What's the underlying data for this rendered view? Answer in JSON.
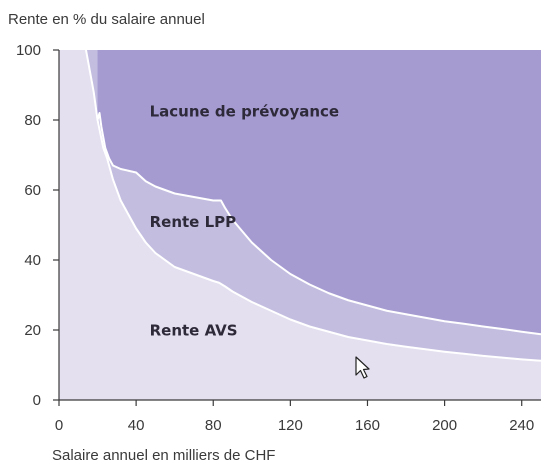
{
  "chart_data": {
    "type": "area",
    "ylabel": "Rente en % du salaire annuel",
    "xlabel": "Salaire annuel en milliers de CHF",
    "xlim": [
      0,
      250
    ],
    "ylim": [
      0,
      100
    ],
    "xticks": [
      0,
      40,
      80,
      120,
      160,
      200,
      240
    ],
    "yticks": [
      0,
      20,
      40,
      60,
      80,
      100
    ],
    "grid": false,
    "colors": {
      "avs": "#e4e0f0",
      "lpp": "#c3bde0",
      "lacune": "#a59bd1",
      "boundary": "#ffffff",
      "axis": "#3a3a3a"
    },
    "series": [
      {
        "name": "Rente AVS",
        "x": [
          14,
          18,
          20,
          23,
          25,
          28,
          32,
          36,
          40,
          45,
          50,
          55,
          60,
          65,
          70,
          75,
          80,
          83,
          86,
          90,
          100,
          110,
          120,
          130,
          140,
          150,
          160,
          170,
          180,
          190,
          200,
          210,
          220,
          230,
          240,
          250
        ],
        "y": [
          100,
          88,
          80,
          72,
          69,
          63,
          57,
          53,
          49,
          45,
          42,
          40,
          38,
          37,
          36,
          35,
          34,
          33.5,
          32.5,
          31,
          28,
          25.5,
          23,
          21,
          19.5,
          18,
          17,
          16,
          15.2,
          14.5,
          13.8,
          13.2,
          12.6,
          12.1,
          11.6,
          11.2
        ]
      },
      {
        "name": "Rente LPP",
        "x": [
          20,
          21,
          22,
          24,
          26,
          28,
          32,
          36,
          40,
          42,
          45,
          50,
          55,
          60,
          65,
          70,
          75,
          80,
          84,
          86,
          90,
          100,
          110,
          120,
          130,
          140,
          150,
          160,
          170,
          180,
          190,
          200,
          210,
          220,
          230,
          240,
          250
        ],
        "y": [
          80,
          82,
          78,
          72,
          69,
          67,
          66,
          65.5,
          65,
          64,
          62.5,
          61,
          60,
          59,
          58.5,
          58,
          57.5,
          57,
          57,
          55,
          51.5,
          45,
          40,
          36,
          33,
          30.5,
          28.5,
          27,
          25.5,
          24.5,
          23.5,
          22.5,
          21.8,
          21,
          20.3,
          19.5,
          18.8
        ]
      }
    ],
    "annotations": [
      {
        "text": "Lacune de prévoyance",
        "x": 47,
        "y": 81
      },
      {
        "text": "Rente LPP",
        "x": 47,
        "y": 49.5
      },
      {
        "text": "Rente AVS",
        "x": 47,
        "y": 18.5
      }
    ]
  }
}
